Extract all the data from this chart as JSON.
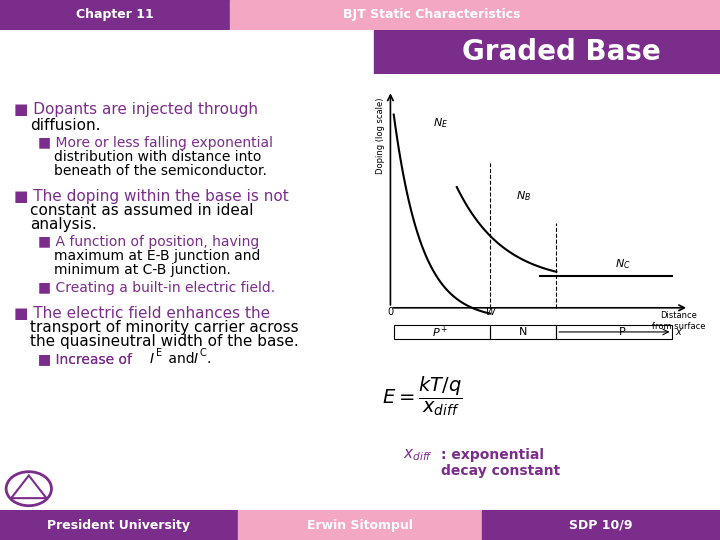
{
  "header_left_text": "Chapter 11",
  "header_right_text": "BJT Static Characteristics",
  "header_left_color": "#7B2D8B",
  "header_right_color": "#F4A7C3",
  "title_text": "Graded Base",
  "title_color": "#FFFFFF",
  "title_bg_color": "#7B2D8B",
  "body_bg_color": "#FFFFFF",
  "bullet_color": "#7B2D8B",
  "text_color": "#000000",
  "footer_left_text": "President University",
  "footer_left_color": "#7B2D8B",
  "footer_mid_text": "Erwin Sitompul",
  "footer_mid_color": "#F4A7C3",
  "footer_right_text": "SDP 10/9",
  "footer_right_color": "#7B2D8B",
  "footer_text_color": "#FFFFFF",
  "accent_color": "#7B2D8B",
  "xdiff_label": "x",
  "xdiff_subscript": "diff",
  "xdiff_desc": " : exponential\ndecay constant"
}
